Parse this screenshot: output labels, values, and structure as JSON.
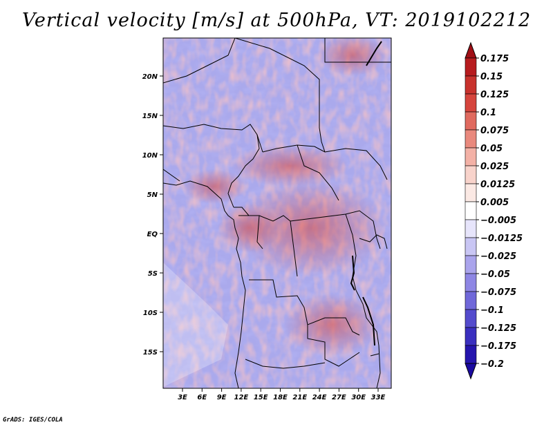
{
  "title": "Vertical velocity [m/s] at 500hPa, VT: 2019102212",
  "credit": "GrADS: IGES/COLA",
  "map": {
    "lat_labels": [
      "20N",
      "15N",
      "10N",
      "5N",
      "EQ",
      "5S",
      "10S",
      "15S"
    ],
    "lon_labels": [
      "3E",
      "6E",
      "9E",
      "12E",
      "15E",
      "18E",
      "21E",
      "24E",
      "27E",
      "30E",
      "33E"
    ]
  },
  "colorbar": {
    "levels": [
      "0.175",
      "0.15",
      "0.125",
      "0.1",
      "0.075",
      "0.05",
      "0.025",
      "0.0125",
      "0.005",
      "-0.005",
      "-0.0125",
      "-0.025",
      "-0.05",
      "-0.075",
      "-0.1",
      "-0.125",
      "-0.175",
      "-0.2"
    ],
    "colors": [
      "#a00f16",
      "#b71c1f",
      "#c8322d",
      "#d6453d",
      "#e06a5f",
      "#e9897d",
      "#f3b1a6",
      "#f8d3cb",
      "#fbe9e4",
      "#ffffff",
      "#e7e5fb",
      "#c9c6f4",
      "#aaa4ec",
      "#8e86e4",
      "#7068d9",
      "#544bcd",
      "#3a2fbf",
      "#2515ad",
      "#1a0aa0"
    ]
  }
}
